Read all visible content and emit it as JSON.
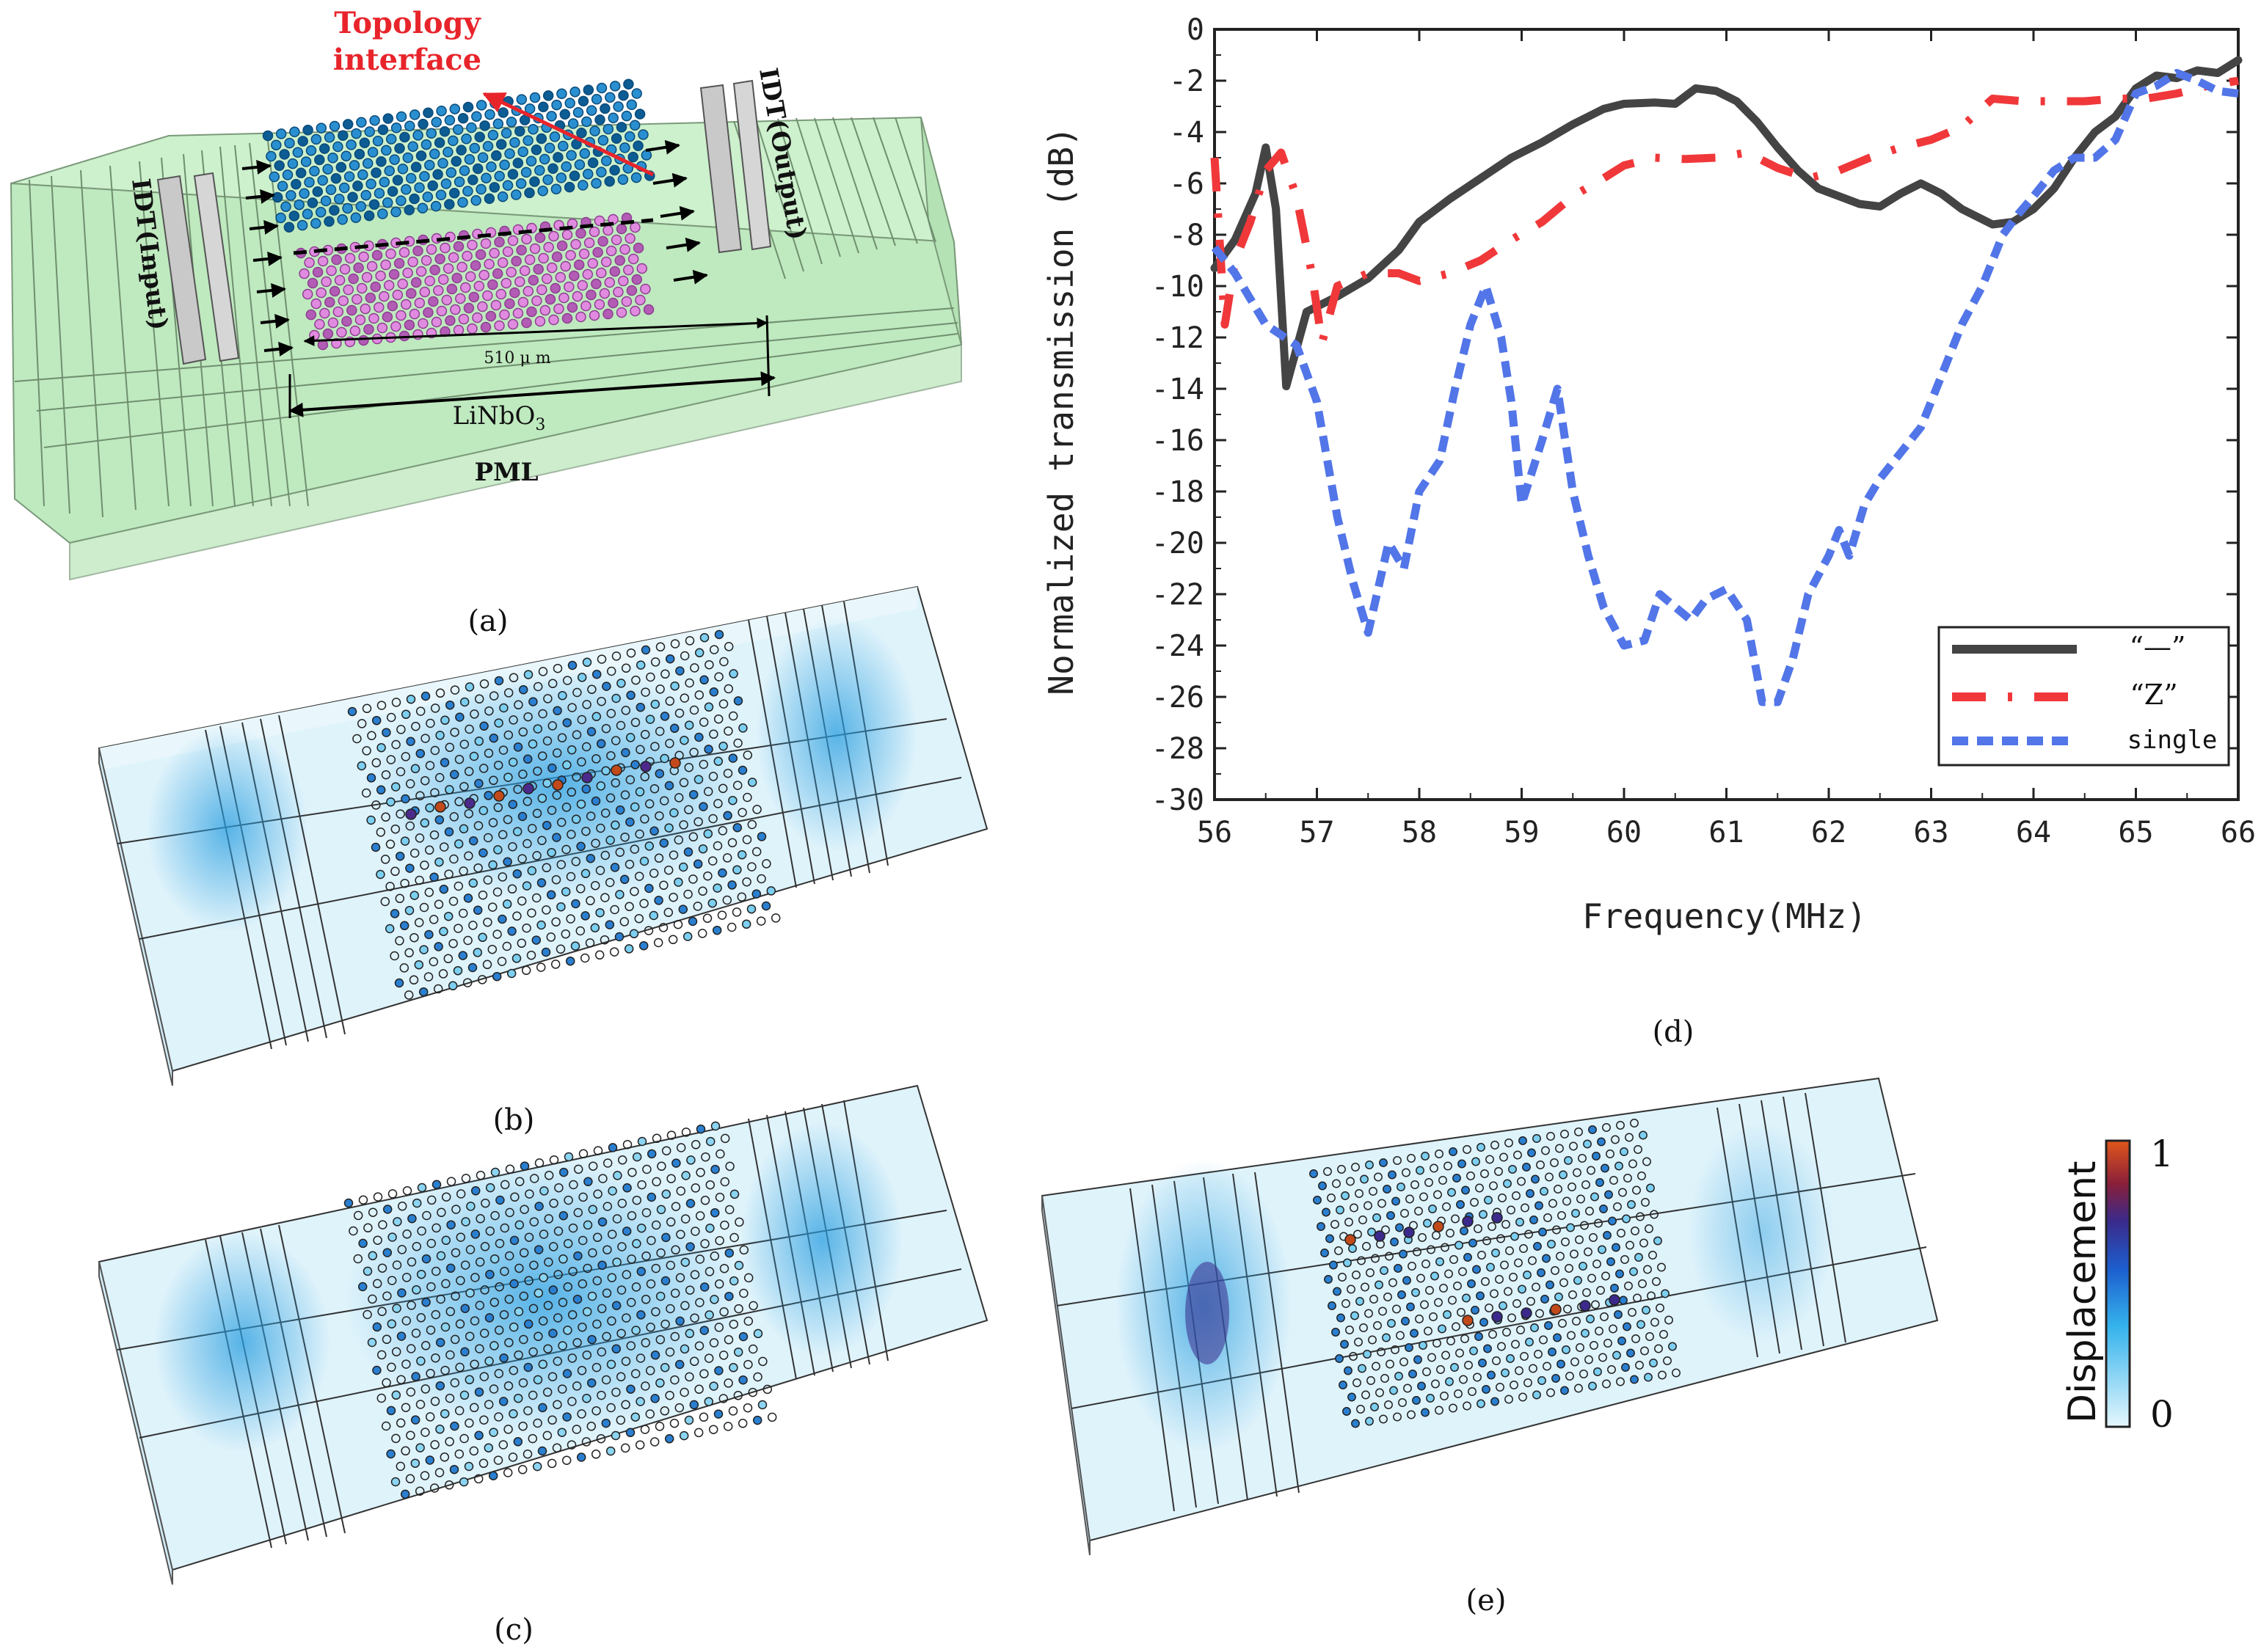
{
  "panel_a": {
    "caption": "(a)",
    "interface_label_line1": "Topology",
    "interface_label_line2": "interface",
    "idt_input": "IDT(Input)",
    "idt_output": "IDT(Output)",
    "dimension": "510 μ m",
    "substrate_html": "LiNbO3",
    "pml": "PML",
    "colors": {
      "box": "#c9efc9",
      "box_edge": "#6a8a6a",
      "top_lattice": "#1b7fc4",
      "bottom_lattice": "#d97bd9",
      "arrow": "#e8242b"
    }
  },
  "panel_b": {
    "caption": "(b)"
  },
  "panel_c": {
    "caption": "(c)"
  },
  "panel_e": {
    "caption": "(e)"
  },
  "panel_d": {
    "caption": "(d)"
  },
  "colorbar": {
    "label": "Displacement",
    "max_label": "1",
    "min_label": "0"
  },
  "chart_data": {
    "type": "line",
    "title": "",
    "xlabel": "Frequency(MHz)",
    "ylabel": "Normalized transmission (dB)",
    "xlim": [
      56,
      66
    ],
    "ylim": [
      -30,
      0
    ],
    "xticks": [
      56,
      57,
      58,
      59,
      60,
      61,
      62,
      63,
      64,
      65,
      66
    ],
    "yticks": [
      0,
      -2,
      -4,
      -6,
      -8,
      -10,
      -12,
      -14,
      -16,
      -18,
      -20,
      -22,
      -24,
      -26,
      -28,
      -30
    ],
    "legend_position": "bottom-right",
    "series": [
      {
        "name": "“—”",
        "color": "#444444",
        "style": "solid",
        "x": [
          56.0,
          56.2,
          56.4,
          56.5,
          56.6,
          56.7,
          56.9,
          57.2,
          57.5,
          57.8,
          58.0,
          58.3,
          58.6,
          58.9,
          59.2,
          59.5,
          59.8,
          60.0,
          60.3,
          60.5,
          60.7,
          60.9,
          61.1,
          61.3,
          61.5,
          61.7,
          61.9,
          62.1,
          62.3,
          62.5,
          62.7,
          62.9,
          63.1,
          63.3,
          63.6,
          63.8,
          64.0,
          64.2,
          64.4,
          64.6,
          64.8,
          65.0,
          65.2,
          65.4,
          65.6,
          65.8,
          66.0
        ],
        "y": [
          -9.3,
          -8.2,
          -6.4,
          -4.6,
          -7.0,
          -13.9,
          -11.0,
          -10.4,
          -9.7,
          -8.6,
          -7.5,
          -6.6,
          -5.8,
          -5.0,
          -4.4,
          -3.7,
          -3.1,
          -2.9,
          -2.85,
          -2.9,
          -2.3,
          -2.4,
          -2.8,
          -3.6,
          -4.6,
          -5.5,
          -6.2,
          -6.5,
          -6.8,
          -6.9,
          -6.4,
          -6.0,
          -6.4,
          -7.0,
          -7.6,
          -7.5,
          -7.0,
          -6.2,
          -5.0,
          -4.0,
          -3.4,
          -2.3,
          -1.8,
          -1.9,
          -1.6,
          -1.7,
          -1.2
        ]
      },
      {
        "name": "“Z”",
        "color": "#f0383a",
        "style": "dashdot",
        "x": [
          56.0,
          56.1,
          56.2,
          56.35,
          56.5,
          56.65,
          56.8,
          56.95,
          57.05,
          57.2,
          57.5,
          57.8,
          58.0,
          58.3,
          58.6,
          58.9,
          59.2,
          59.5,
          59.8,
          60.0,
          60.3,
          60.6,
          60.9,
          61.2,
          61.5,
          61.8,
          62.1,
          62.4,
          62.7,
          63.0,
          63.3,
          63.6,
          63.9,
          64.2,
          64.5,
          64.8,
          65.1,
          65.4,
          65.7,
          66.0
        ],
        "y": [
          -5.0,
          -11.5,
          -9.0,
          -7.5,
          -5.5,
          -4.8,
          -6.5,
          -9.5,
          -12.2,
          -10.0,
          -9.5,
          -9.5,
          -9.8,
          -9.5,
          -9.0,
          -8.2,
          -7.5,
          -6.5,
          -5.8,
          -5.3,
          -5.0,
          -5.05,
          -5.0,
          -4.8,
          -5.4,
          -5.8,
          -5.5,
          -5.0,
          -4.6,
          -4.3,
          -3.8,
          -2.7,
          -2.8,
          -2.8,
          -2.8,
          -2.7,
          -2.7,
          -2.5,
          -2.2,
          -2.0
        ]
      },
      {
        "name": "single",
        "color": "#5275e8",
        "style": "dashed",
        "x": [
          56.0,
          56.2,
          56.5,
          56.8,
          57.0,
          57.2,
          57.35,
          57.5,
          57.7,
          57.85,
          58.0,
          58.2,
          58.35,
          58.5,
          58.65,
          58.8,
          58.9,
          59.0,
          59.2,
          59.35,
          59.5,
          59.65,
          59.8,
          60.0,
          60.2,
          60.35,
          60.5,
          60.65,
          60.8,
          61.0,
          61.2,
          61.35,
          61.5,
          61.65,
          61.8,
          62.0,
          62.1,
          62.2,
          62.35,
          62.5,
          62.7,
          62.9,
          63.1,
          63.3,
          63.5,
          63.7,
          63.85,
          64.0,
          64.2,
          64.4,
          64.6,
          64.8,
          65.0,
          65.2,
          65.4,
          65.6,
          65.8,
          66.0
        ],
        "y": [
          -8.5,
          -9.5,
          -11.5,
          -12.3,
          -14.5,
          -19.0,
          -21.5,
          -23.5,
          -20.0,
          -21.0,
          -18.0,
          -16.8,
          -14.0,
          -11.5,
          -10.0,
          -12.0,
          -14.5,
          -18.5,
          -16.0,
          -14.0,
          -18.0,
          -20.5,
          -22.5,
          -24.0,
          -23.8,
          -22.0,
          -22.5,
          -23.0,
          -22.2,
          -21.8,
          -23.0,
          -26.2,
          -26.2,
          -24.5,
          -22.0,
          -20.5,
          -19.5,
          -20.5,
          -18.5,
          -17.5,
          -16.5,
          -15.5,
          -13.5,
          -11.5,
          -10.0,
          -8.0,
          -7.2,
          -6.5,
          -5.5,
          -5.0,
          -5.0,
          -4.3,
          -2.5,
          -2.2,
          -1.7,
          -2.0,
          -2.4,
          -2.5
        ]
      }
    ]
  }
}
